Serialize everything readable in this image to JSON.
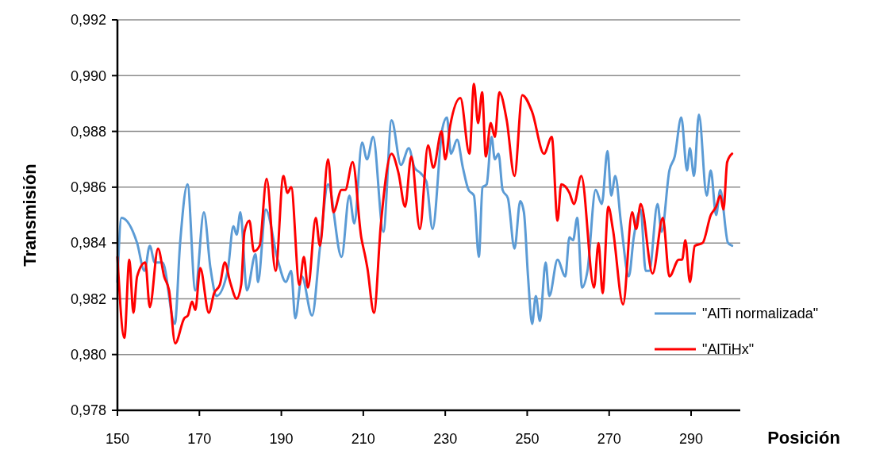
{
  "chart_data": {
    "type": "line",
    "xlabel": "Posición",
    "ylabel": "Transmisión",
    "xlim": [
      150,
      302
    ],
    "xticks": [
      150,
      170,
      190,
      210,
      230,
      250,
      270,
      290
    ],
    "ylim": [
      0.978,
      0.992
    ],
    "yticks": [
      {
        "value": 0.978,
        "label": "0,978"
      },
      {
        "value": 0.98,
        "label": "0,980"
      },
      {
        "value": 0.982,
        "label": "0,982"
      },
      {
        "value": 0.984,
        "label": "0,984"
      },
      {
        "value": 0.986,
        "label": "0,986"
      },
      {
        "value": 0.988,
        "label": "0,988"
      },
      {
        "value": 0.99,
        "label": "0,990"
      },
      {
        "value": 0.992,
        "label": "0,992"
      }
    ],
    "grid": "y",
    "legend": "bottom right",
    "marker": "none",
    "line_style": "solid",
    "series": [
      {
        "name": "\"AlTi normalizada\"",
        "color": "#5b9bd5",
        "x": [
          150.0,
          151.0,
          154.8,
          156.6,
          157.9,
          159.1,
          161.0,
          164.0,
          165.3,
          167.1,
          169.0,
          171.1,
          172.7,
          174.2,
          176.9,
          178.3,
          179.1,
          180.0,
          181.6,
          183.7,
          184.3,
          186.2,
          189.1,
          191.1,
          192.4,
          193.4,
          195.0,
          197.5,
          199.4,
          201.4,
          204.7,
          206.6,
          207.8,
          209.7,
          210.9,
          212.4,
          214.9,
          216.9,
          219.2,
          221.1,
          222.5,
          224.0,
          225.4,
          226.9,
          229.3,
          230.4,
          231.4,
          232.9,
          234.3,
          235.7,
          237.0,
          238.2,
          239.1,
          240.1,
          241.3,
          242.1,
          243.0,
          244.0,
          245.3,
          246.9,
          248.3,
          249.2,
          250.2,
          251.2,
          252.1,
          253.1,
          254.5,
          255.4,
          257.4,
          259.3,
          260.3,
          261.2,
          262.2,
          263.4,
          264.7,
          266.7,
          268.2,
          269.6,
          270.5,
          271.5,
          272.9,
          274.8,
          276.0,
          277.7,
          278.9,
          279.8,
          281.8,
          282.8,
          284.7,
          286.0,
          287.6,
          289.0,
          289.7,
          290.7,
          291.9,
          293.8,
          294.8,
          296.1,
          297.1,
          299.0,
          300.0
        ],
        "values": [
          0.9826,
          0.9849,
          0.984,
          0.983,
          0.9839,
          0.9833,
          0.9833,
          0.9811,
          0.984,
          0.9861,
          0.9823,
          0.9851,
          0.9831,
          0.9821,
          0.983,
          0.9846,
          0.9843,
          0.9851,
          0.9823,
          0.9836,
          0.9826,
          0.9852,
          0.9834,
          0.9826,
          0.983,
          0.9813,
          0.9828,
          0.9814,
          0.9838,
          0.9861,
          0.9835,
          0.9857,
          0.9847,
          0.9876,
          0.987,
          0.9878,
          0.9844,
          0.9884,
          0.9868,
          0.9874,
          0.9867,
          0.9865,
          0.9862,
          0.9845,
          0.9881,
          0.9885,
          0.9872,
          0.9877,
          0.9867,
          0.9859,
          0.9857,
          0.9835,
          0.986,
          0.9861,
          0.9878,
          0.987,
          0.9872,
          0.9859,
          0.9856,
          0.9838,
          0.9855,
          0.9851,
          0.9828,
          0.9811,
          0.9821,
          0.9812,
          0.9833,
          0.9821,
          0.9834,
          0.9828,
          0.9842,
          0.9841,
          0.9849,
          0.9824,
          0.983,
          0.9859,
          0.9854,
          0.9873,
          0.9857,
          0.9864,
          0.9847,
          0.9828,
          0.9842,
          0.9852,
          0.983,
          0.983,
          0.9854,
          0.9844,
          0.9866,
          0.9871,
          0.9885,
          0.9866,
          0.9874,
          0.9864,
          0.9886,
          0.9857,
          0.9866,
          0.985,
          0.9859,
          0.984,
          0.9839
        ]
      },
      {
        "name": "\"AlTiHx\"",
        "color": "#ff0000",
        "x": [
          150.0,
          151.7,
          152.9,
          153.9,
          154.8,
          156.8,
          157.9,
          159.9,
          161.4,
          162.6,
          164.1,
          166.3,
          167.2,
          168.2,
          169.0,
          170.2,
          172.3,
          173.6,
          175.0,
          176.2,
          177.5,
          179.1,
          180.2,
          181.0,
          182.2,
          183.3,
          184.7,
          186.4,
          188.6,
          190.5,
          191.5,
          192.4,
          194.4,
          195.5,
          196.5,
          198.4,
          199.4,
          201.4,
          202.7,
          204.7,
          205.6,
          207.4,
          209.5,
          210.5,
          211.0,
          212.6,
          214.3,
          216.9,
          218.6,
          220.2,
          221.7,
          223.8,
          225.8,
          227.1,
          229.1,
          230.0,
          231.2,
          233.7,
          235.9,
          237.0,
          238.0,
          239.0,
          239.9,
          241.1,
          242.1,
          243.2,
          245.0,
          246.9,
          248.8,
          251.2,
          254.1,
          256.0,
          257.4,
          258.3,
          260.3,
          261.4,
          263.2,
          266.3,
          267.4,
          268.4,
          269.8,
          270.9,
          273.4,
          275.6,
          276.6,
          277.7,
          280.6,
          283.1,
          284.7,
          287.0,
          287.8,
          288.6,
          289.7,
          290.9,
          292.8,
          294.8,
          296.1,
          297.1,
          297.9,
          298.8,
          300.0
        ],
        "values": [
          0.9835,
          0.9806,
          0.9834,
          0.9815,
          0.9828,
          0.9833,
          0.9817,
          0.9838,
          0.9828,
          0.9823,
          0.9804,
          0.9813,
          0.9814,
          0.9819,
          0.9816,
          0.9831,
          0.9815,
          0.9822,
          0.9825,
          0.9833,
          0.9826,
          0.982,
          0.9825,
          0.9844,
          0.9848,
          0.9837,
          0.9839,
          0.9863,
          0.983,
          0.9864,
          0.9858,
          0.986,
          0.9825,
          0.9835,
          0.9824,
          0.9849,
          0.9839,
          0.987,
          0.9851,
          0.9859,
          0.9859,
          0.9869,
          0.9842,
          0.9835,
          0.9831,
          0.9815,
          0.9847,
          0.9872,
          0.9865,
          0.9853,
          0.9871,
          0.9845,
          0.9875,
          0.9867,
          0.988,
          0.987,
          0.9882,
          0.9892,
          0.9872,
          0.9897,
          0.9883,
          0.9894,
          0.9871,
          0.9883,
          0.9878,
          0.9894,
          0.9884,
          0.9864,
          0.9893,
          0.9887,
          0.9872,
          0.9878,
          0.9848,
          0.9861,
          0.9858,
          0.9854,
          0.9864,
          0.9824,
          0.984,
          0.9822,
          0.9853,
          0.9845,
          0.9818,
          0.9851,
          0.9845,
          0.9854,
          0.9829,
          0.9849,
          0.9828,
          0.9834,
          0.9834,
          0.9841,
          0.9826,
          0.9839,
          0.984,
          0.985,
          0.9853,
          0.9857,
          0.9852,
          0.9869,
          0.9872
        ]
      }
    ]
  }
}
